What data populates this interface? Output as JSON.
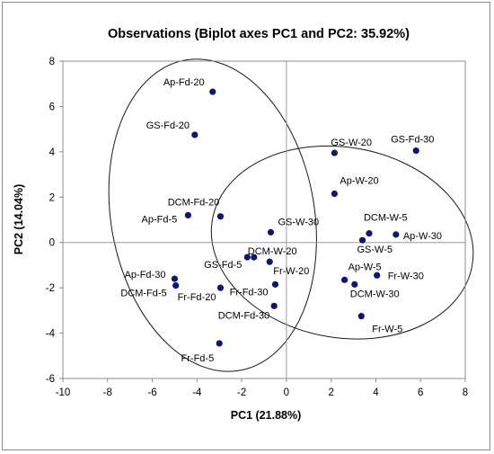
{
  "chart_data": {
    "type": "scatter",
    "title": "Observations (Biplot axes PC1 and PC2: 35.92%)",
    "xlabel": "PC1 (21.88%)",
    "ylabel": "PC2 (14.04%)",
    "xlim": [
      -10,
      8
    ],
    "ylim": [
      -6,
      8
    ],
    "xticks": [
      "-10",
      "-8",
      "-6",
      "-4",
      "-2",
      "0",
      "2",
      "4",
      "6",
      "8"
    ],
    "yticks": [
      "-6",
      "-4",
      "-2",
      "0",
      "2",
      "4",
      "6",
      "8"
    ],
    "marker_color": "#0d1673",
    "grid": false,
    "legend": "none",
    "points": [
      {
        "label": "Ap-Fd-20",
        "x": -3.3,
        "y": 6.65
      },
      {
        "label": "GS-Fd-20",
        "x": -4.1,
        "y": 4.75
      },
      {
        "label": "DCM-Fd-20",
        "x": -2.95,
        "y": 1.15
      },
      {
        "label": "Ap-Fd-5",
        "x": -4.4,
        "y": 1.2
      },
      {
        "label": "GS-Fd-5",
        "x": -1.75,
        "y": -0.65
      },
      {
        "label": "DCM-W-20",
        "x": -1.45,
        "y": -0.65
      },
      {
        "label": "Ap-Fd-30",
        "x": -5.0,
        "y": -1.6
      },
      {
        "label": "DCM-Fd-5",
        "x": -4.95,
        "y": -1.9
      },
      {
        "label": "Fr-Fd-20",
        "x": -2.95,
        "y": -2.0
      },
      {
        "label": "Fr-Fd-30",
        "x": -0.5,
        "y": -1.85
      },
      {
        "label": "DCM-Fd-30",
        "x": -0.55,
        "y": -2.8
      },
      {
        "label": "Fr-Fd-5",
        "x": -3.0,
        "y": -4.45
      },
      {
        "label": "GS-W-30",
        "x": -0.7,
        "y": 0.45
      },
      {
        "label": "Fr-W-20",
        "x": -0.75,
        "y": -0.85
      },
      {
        "label": "GS-W-20",
        "x": 2.15,
        "y": 3.95
      },
      {
        "label": "GS-Fd-30",
        "x": 5.8,
        "y": 4.05
      },
      {
        "label": "Ap-W-20",
        "x": 2.15,
        "y": 2.15
      },
      {
        "label": "DCM-W-5",
        "x": 3.7,
        "y": 0.4
      },
      {
        "label": "Ap-W-30",
        "x": 4.9,
        "y": 0.35
      },
      {
        "label": "GS-W-5",
        "x": 3.4,
        "y": 0.1
      },
      {
        "label": "Ap-W-5",
        "x": 2.6,
        "y": -1.65
      },
      {
        "label": "DCM-W-30",
        "x": 3.05,
        "y": -1.85
      },
      {
        "label": "Fr-W-30",
        "x": 4.05,
        "y": -1.45
      },
      {
        "label": "Fr-W-5",
        "x": 3.35,
        "y": -3.25
      }
    ],
    "ellipses": [
      {
        "group": "Fd",
        "cx": -3.3,
        "cy": 1.2,
        "rx": 4.55,
        "ry": 6.95,
        "angle": -10
      },
      {
        "group": "W",
        "cx": 2.5,
        "cy": 0.0,
        "rx": 5.9,
        "ry": 4.2,
        "angle": 10
      }
    ]
  }
}
